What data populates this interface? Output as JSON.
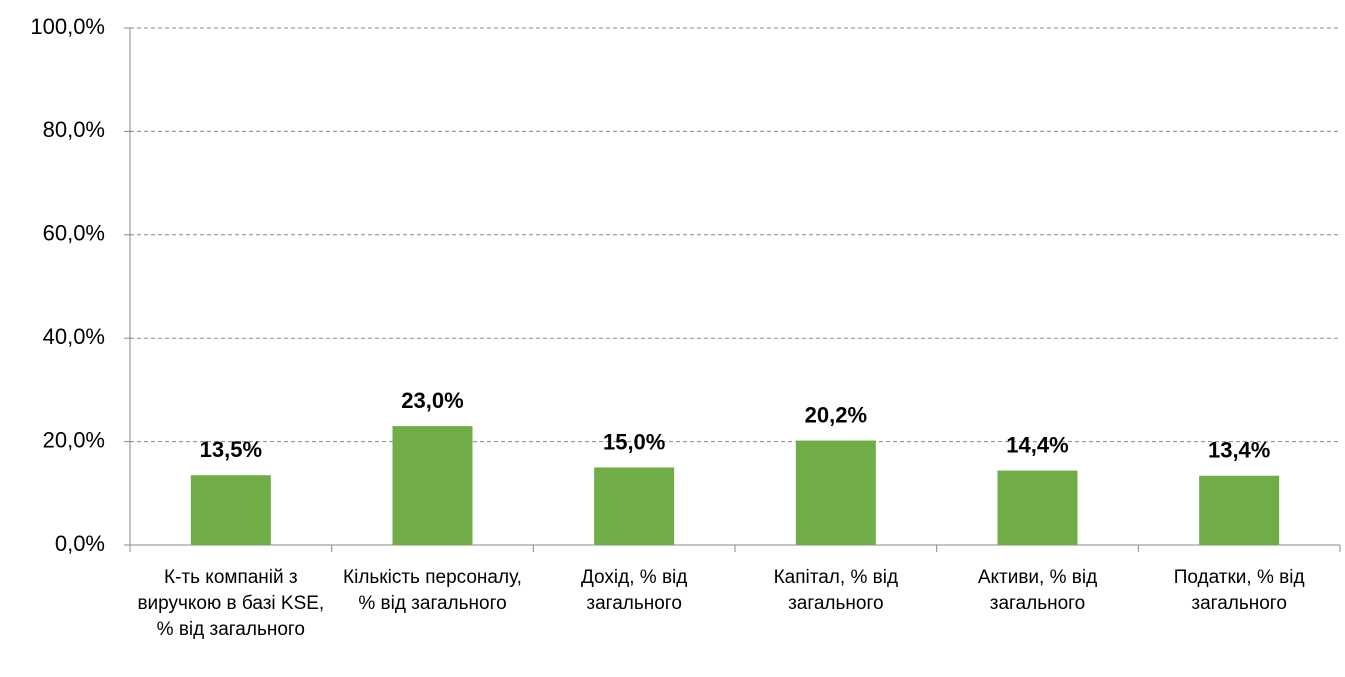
{
  "chart_data": {
    "type": "bar",
    "categories": [
      "К-ть компаній з виручкою в базі KSE, % від загального",
      "Кількість персоналу, % від загального",
      "Дохід, % від загального",
      "Капітал, % від загального",
      "Активи, % від загального",
      "Податки, % від загального"
    ],
    "values": [
      13.5,
      23.0,
      15.0,
      20.2,
      14.4,
      13.4
    ],
    "value_labels": [
      "13,5%",
      "23,0%",
      "15,0%",
      "20,2%",
      "14,4%",
      "13,4%"
    ],
    "color": "#70ad47",
    "ylim": [
      0,
      100
    ],
    "yticks": [
      {
        "value": 0,
        "label": "0,0%"
      },
      {
        "value": 20,
        "label": "20,0%"
      },
      {
        "value": 40,
        "label": "40,0%"
      },
      {
        "value": 60,
        "label": "60,0%"
      },
      {
        "value": 80,
        "label": "80,0%"
      },
      {
        "value": 100,
        "label": "100,0%"
      }
    ],
    "grid": true
  }
}
